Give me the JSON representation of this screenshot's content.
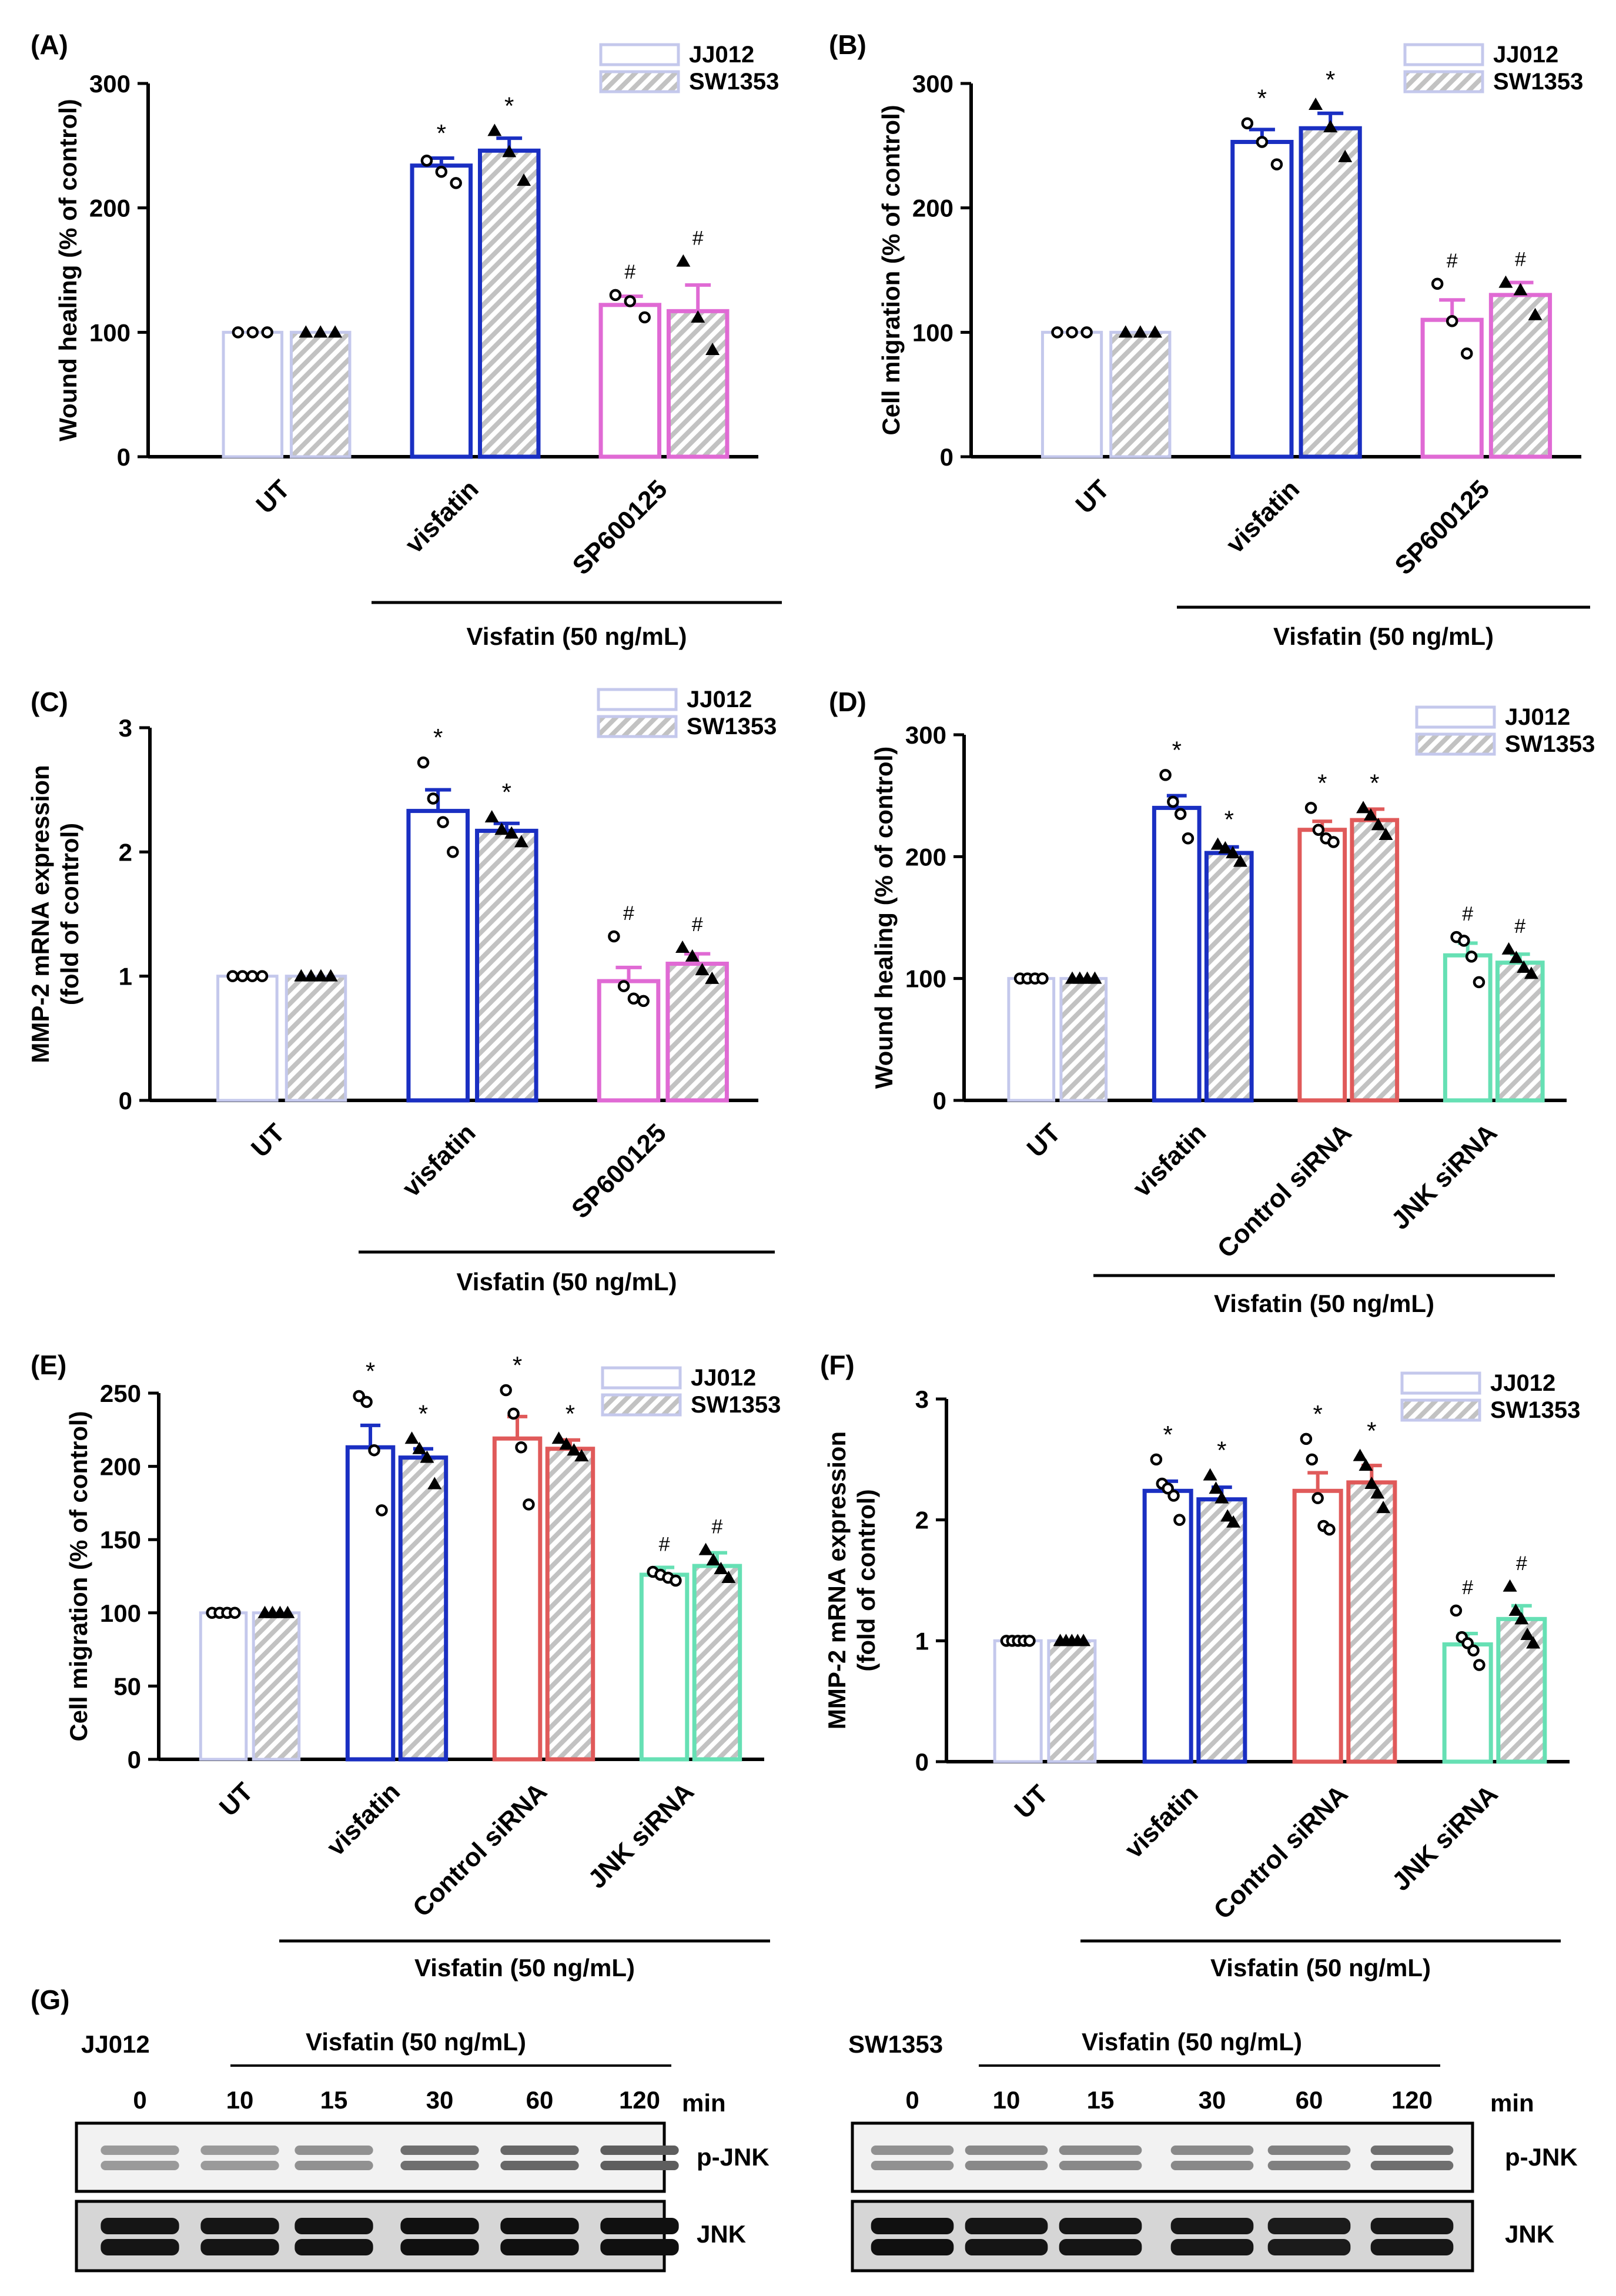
{
  "colors": {
    "ut": "#c4c8ec",
    "visfatin": "#1a2fc2",
    "sp600125": "#e06ad4",
    "control_sirna": "#e05a5a",
    "jnk_sirna": "#66e0b4",
    "axis": "#000000"
  },
  "legend": {
    "series": [
      "JJ012",
      "SW1353"
    ]
  },
  "chart_data": [
    {
      "id": "A",
      "panel_label": "(A)",
      "type": "bar",
      "ylabel_lines": [
        "Wound healing (% of control)"
      ],
      "ylim": [
        0,
        300
      ],
      "yticks": [
        "0",
        "100",
        "200",
        "300"
      ],
      "categories": [
        "UT",
        "visfatin",
        "SP600125"
      ],
      "group_label": "Visfatin (50 ng/mL)",
      "series": [
        {
          "name": "JJ012",
          "marker": "circle",
          "values": [
            100,
            234,
            122
          ],
          "errors": [
            0,
            6,
            7
          ],
          "annotations": [
            "",
            "*",
            "#"
          ],
          "points": [
            [
              100,
              100,
              100
            ],
            [
              238,
              229,
              220
            ],
            [
              130,
              125,
              112
            ]
          ]
        },
        {
          "name": "SW1353",
          "marker": "triangle",
          "values": [
            100,
            246,
            117
          ],
          "errors": [
            0,
            10,
            21
          ],
          "annotations": [
            "",
            "*",
            "#"
          ],
          "points": [
            [
              100,
              100,
              100
            ],
            [
              262,
              245,
              222
            ],
            [
              157,
              112,
              86
            ]
          ]
        }
      ]
    },
    {
      "id": "B",
      "panel_label": "(B)",
      "type": "bar",
      "ylabel_lines": [
        "Cell migration (% of control)"
      ],
      "ylim": [
        0,
        300
      ],
      "yticks": [
        "0",
        "100",
        "200",
        "300"
      ],
      "categories": [
        "UT",
        "visfatin",
        "SP600125"
      ],
      "group_label": "Visfatin (50 ng/mL)",
      "series": [
        {
          "name": "JJ012",
          "marker": "circle",
          "values": [
            100,
            253,
            110
          ],
          "errors": [
            0,
            10,
            16
          ],
          "annotations": [
            "",
            "*",
            "#"
          ],
          "points": [
            [
              100,
              100,
              100
            ],
            [
              268,
              253,
              235
            ],
            [
              139,
              109,
              83
            ]
          ]
        },
        {
          "name": "SW1353",
          "marker": "triangle",
          "values": [
            100,
            264,
            130
          ],
          "errors": [
            0,
            12,
            10
          ],
          "annotations": [
            "",
            "*",
            "#"
          ],
          "points": [
            [
              100,
              100,
              100
            ],
            [
              283,
              265,
              241
            ],
            [
              140,
              134,
              114
            ]
          ]
        }
      ]
    },
    {
      "id": "C",
      "panel_label": "(C)",
      "type": "bar",
      "ylabel_lines": [
        "MMP-2 mRNA expression",
        "(fold of control)"
      ],
      "ylim": [
        0,
        3
      ],
      "yticks": [
        "0",
        "1",
        "2",
        "3"
      ],
      "categories": [
        "UT",
        "visfatin",
        "SP600125"
      ],
      "group_label": "Visfatin (50 ng/mL)",
      "series": [
        {
          "name": "JJ012",
          "marker": "circle",
          "values": [
            1,
            2.33,
            0.96
          ],
          "errors": [
            0,
            0.17,
            0.11
          ],
          "annotations": [
            "",
            "*",
            "#"
          ],
          "points": [
            [
              1,
              1,
              1,
              1
            ],
            [
              2.72,
              2.43,
              2.24,
              2.0
            ],
            [
              1.32,
              0.92,
              0.82,
              0.8
            ]
          ]
        },
        {
          "name": "SW1353",
          "marker": "triangle",
          "values": [
            1,
            2.17,
            1.1
          ],
          "errors": [
            0,
            0.06,
            0.08
          ],
          "annotations": [
            "",
            "*",
            "#"
          ],
          "points": [
            [
              1,
              1,
              1,
              1
            ],
            [
              2.28,
              2.18,
              2.15,
              2.08
            ],
            [
              1.23,
              1.16,
              1.05,
              0.98
            ]
          ]
        }
      ]
    },
    {
      "id": "D",
      "panel_label": "(D)",
      "type": "bar",
      "ylabel_lines": [
        "Wound healing (% of control)"
      ],
      "ylim": [
        0,
        300
      ],
      "yticks": [
        "0",
        "100",
        "200",
        "300"
      ],
      "categories": [
        "UT",
        "visfatin",
        "Control siRNA",
        "JNK siRNA"
      ],
      "group_label": "Visfatin (50 ng/mL)",
      "series": [
        {
          "name": "JJ012",
          "marker": "circle",
          "values": [
            100,
            240,
            222,
            119
          ],
          "errors": [
            0,
            10,
            7,
            10
          ],
          "annotations": [
            "",
            "*",
            "*",
            "#"
          ],
          "points": [
            [
              100,
              100,
              100,
              100
            ],
            [
              267,
              245,
              235,
              215
            ],
            [
              240,
              222,
              215,
              212
            ],
            [
              134,
              131,
              118,
              97
            ]
          ]
        },
        {
          "name": "SW1353",
          "marker": "triangle",
          "values": [
            100,
            203,
            230,
            113
          ],
          "errors": [
            0,
            5,
            9,
            7
          ],
          "annotations": [
            "",
            "*",
            "*",
            "#"
          ],
          "points": [
            [
              100,
              100,
              100,
              100
            ],
            [
              210,
              207,
              203,
              196
            ],
            [
              240,
              234,
              226,
              218
            ],
            [
              124,
              117,
              109,
              104
            ]
          ]
        }
      ]
    },
    {
      "id": "E",
      "panel_label": "(E)",
      "type": "bar",
      "ylabel_lines": [
        "Cell migration (% of control)"
      ],
      "ylim": [
        0,
        250
      ],
      "yticks": [
        "0",
        "50",
        "100",
        "150",
        "200",
        "250"
      ],
      "categories": [
        "UT",
        "visfatin",
        "Control siRNA",
        "JNK siRNA"
      ],
      "group_label": "Visfatin (50 ng/mL)",
      "series": [
        {
          "name": "JJ012",
          "marker": "circle",
          "values": [
            100,
            213,
            219,
            126
          ],
          "errors": [
            0,
            15,
            15,
            5
          ],
          "annotations": [
            "",
            "*",
            "*",
            "#"
          ],
          "points": [
            [
              100,
              100,
              100,
              100
            ],
            [
              248,
              244,
              211,
              170
            ],
            [
              252,
              236,
              213,
              174
            ],
            [
              128,
              126,
              124,
              122
            ]
          ]
        },
        {
          "name": "SW1353",
          "marker": "triangle",
          "values": [
            100,
            206,
            212,
            132
          ],
          "errors": [
            0,
            6,
            6,
            9
          ],
          "annotations": [
            "",
            "*",
            "*",
            "#"
          ],
          "points": [
            [
              100,
              100,
              100,
              100
            ],
            [
              219,
              212,
              206,
              188
            ],
            [
              219,
              215,
              211,
              207
            ],
            [
              143,
              136,
              130,
              124
            ]
          ]
        }
      ]
    },
    {
      "id": "F",
      "panel_label": "(F)",
      "type": "bar",
      "ylabel_lines": [
        "MMP-2 mRNA expression",
        "(fold of control)"
      ],
      "ylim": [
        0,
        3
      ],
      "yticks": [
        "0",
        "1",
        "2",
        "3"
      ],
      "categories": [
        "UT",
        "visfatin",
        "Control siRNA",
        "JNK siRNA"
      ],
      "group_label": "Visfatin (50 ng/mL)",
      "series": [
        {
          "name": "JJ012",
          "marker": "circle",
          "values": [
            1,
            2.24,
            2.24,
            0.97
          ],
          "errors": [
            0,
            0.08,
            0.15,
            0.09
          ],
          "annotations": [
            "",
            "*",
            "*",
            "#"
          ],
          "points": [
            [
              1,
              1,
              1,
              1,
              1
            ],
            [
              2.5,
              2.3,
              2.26,
              2.2,
              2.0
            ],
            [
              2.67,
              2.5,
              2.18,
              1.95,
              1.92
            ],
            [
              1.25,
              1.03,
              0.98,
              0.92,
              0.8
            ]
          ]
        },
        {
          "name": "SW1353",
          "marker": "triangle",
          "values": [
            1,
            2.17,
            2.31,
            1.18
          ],
          "errors": [
            0,
            0.1,
            0.14,
            0.11
          ],
          "annotations": [
            "",
            "*",
            "*",
            "#"
          ],
          "points": [
            [
              1,
              1,
              1,
              1,
              1
            ],
            [
              2.37,
              2.26,
              2.18,
              2.03,
              1.98
            ],
            [
              2.53,
              2.45,
              2.3,
              2.22,
              2.1
            ],
            [
              1.45,
              1.25,
              1.18,
              1.05,
              0.98
            ]
          ]
        }
      ]
    }
  ],
  "western_blot": {
    "panel_label": "(G)",
    "unit": "min",
    "time_points": [
      "0",
      "10",
      "15",
      "30",
      "60",
      "120"
    ],
    "band_labels": [
      "p-JNK",
      "JNK"
    ],
    "blots": [
      {
        "cell_line": "JJ012",
        "treatment": "Visfatin (50 ng/mL)",
        "pjnk_intensity": [
          0.45,
          0.45,
          0.5,
          0.7,
          0.75,
          0.8
        ],
        "jnk_intensity": [
          0.9,
          0.9,
          0.92,
          0.95,
          0.95,
          0.95
        ]
      },
      {
        "cell_line": "SW1353",
        "treatment": "Visfatin (50 ng/mL)",
        "pjnk_intensity": [
          0.5,
          0.55,
          0.55,
          0.55,
          0.6,
          0.7
        ],
        "jnk_intensity": [
          0.95,
          0.9,
          0.9,
          0.88,
          0.85,
          0.88
        ]
      }
    ]
  }
}
